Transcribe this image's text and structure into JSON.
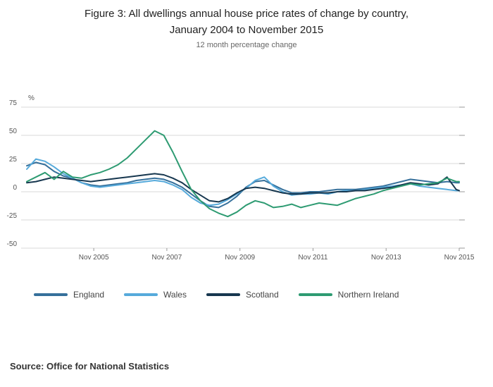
{
  "chart_data": {
    "type": "line",
    "title": "Figure 3: All dwellings annual house price rates of change by country, January 2004 to November 2015",
    "title_line1": "Figure 3: All dwellings annual house price rates of change by country,",
    "title_line2": "January 2004 to November 2015",
    "subtitle": "12 month percentage change",
    "ylabel": "%",
    "ylim": [
      -50,
      75
    ],
    "yticks": [
      75,
      50,
      25,
      0,
      -25,
      -50
    ],
    "x_units": "months since January 2004",
    "xlim": [
      0,
      142
    ],
    "xticks": [
      {
        "x": 22,
        "label": "Nov 2005"
      },
      {
        "x": 46,
        "label": "Nov 2007"
      },
      {
        "x": 70,
        "label": "Nov 2009"
      },
      {
        "x": 94,
        "label": "Nov 2011"
      },
      {
        "x": 118,
        "label": "Nov 2013"
      },
      {
        "x": 142,
        "label": "Nov 2015"
      }
    ],
    "grid": "horizontal",
    "legend_position": "bottom",
    "x": [
      0,
      3,
      6,
      9,
      12,
      15,
      18,
      21,
      24,
      27,
      30,
      33,
      36,
      39,
      42,
      45,
      48,
      51,
      54,
      57,
      60,
      63,
      66,
      69,
      72,
      75,
      78,
      81,
      84,
      87,
      90,
      93,
      96,
      99,
      102,
      105,
      108,
      111,
      114,
      117,
      120,
      123,
      126,
      129,
      132,
      135,
      138,
      141,
      142
    ],
    "series": [
      {
        "name": "England",
        "color": "#36709b",
        "values": [
          23,
          26,
          24,
          18,
          14,
          12,
          8,
          6,
          5,
          6,
          7,
          8,
          10,
          11,
          12,
          11,
          8,
          4,
          -2,
          -8,
          -13,
          -14,
          -10,
          -4,
          4,
          9,
          10,
          6,
          2,
          -1,
          -1,
          0,
          0,
          1,
          2,
          2,
          2,
          3,
          4,
          5,
          7,
          9,
          11,
          10,
          9,
          8,
          9,
          8,
          8
        ]
      },
      {
        "name": "Wales",
        "color": "#56aadb",
        "values": [
          20,
          29,
          27,
          22,
          16,
          12,
          8,
          5,
          4,
          5,
          6,
          7,
          8,
          9,
          10,
          9,
          6,
          2,
          -5,
          -10,
          -12,
          -11,
          -7,
          -2,
          3,
          10,
          13,
          5,
          0,
          -3,
          -2,
          -2,
          -1,
          -2,
          0,
          1,
          1,
          2,
          3,
          4,
          5,
          6,
          7,
          5,
          4,
          3,
          2,
          1,
          1
        ]
      },
      {
        "name": "Scotland",
        "color": "#17374f",
        "values": [
          8,
          9,
          11,
          13,
          12,
          11,
          10,
          9,
          10,
          11,
          12,
          13,
          14,
          15,
          16,
          15,
          12,
          8,
          2,
          -3,
          -8,
          -9,
          -6,
          -1,
          3,
          4,
          3,
          1,
          -1,
          -2,
          -2,
          -1,
          -1,
          -1,
          0,
          0,
          1,
          1,
          2,
          3,
          4,
          6,
          8,
          7,
          6,
          7,
          13,
          2,
          1
        ]
      },
      {
        "name": "Northern Ireland",
        "color": "#2e9b72",
        "values": [
          9,
          13,
          17,
          11,
          18,
          13,
          12,
          15,
          17,
          20,
          24,
          30,
          38,
          46,
          54,
          50,
          35,
          18,
          2,
          -8,
          -15,
          -19,
          -22,
          -18,
          -12,
          -8,
          -10,
          -14,
          -13,
          -11,
          -14,
          -12,
          -10,
          -11,
          -12,
          -9,
          -6,
          -4,
          -2,
          1,
          3,
          5,
          7,
          6,
          7,
          8,
          12,
          9,
          9
        ]
      }
    ]
  },
  "source": {
    "text": "Source: Office for National Statistics"
  }
}
